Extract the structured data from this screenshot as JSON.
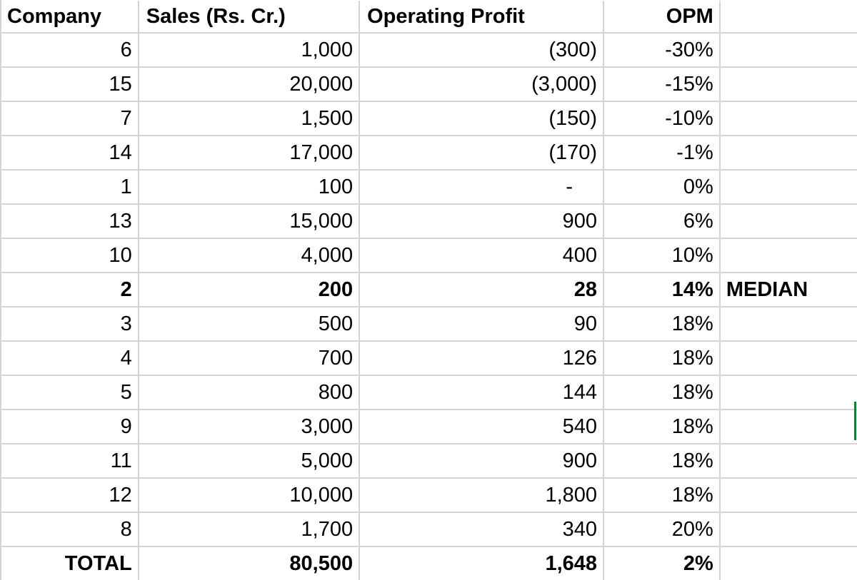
{
  "header": {
    "company": "Company",
    "sales": "Sales (Rs. Cr.)",
    "operating_profit": "Operating Profit",
    "opm": "OPM"
  },
  "rows": [
    {
      "company": "6",
      "sales": "1,000",
      "operating_profit": "(300)",
      "opm": "-30%",
      "note": ""
    },
    {
      "company": "15",
      "sales": "20,000",
      "operating_profit": "(3,000)",
      "opm": "-15%",
      "note": ""
    },
    {
      "company": "7",
      "sales": "1,500",
      "operating_profit": "(150)",
      "opm": "-10%",
      "note": ""
    },
    {
      "company": "14",
      "sales": "17,000",
      "operating_profit": "(170)",
      "opm": "-1%",
      "note": ""
    },
    {
      "company": "1",
      "sales": "100",
      "operating_profit": "-",
      "opm": "0%",
      "note": ""
    },
    {
      "company": "13",
      "sales": "15,000",
      "operating_profit": "900",
      "opm": "6%",
      "note": ""
    },
    {
      "company": "10",
      "sales": "4,000",
      "operating_profit": "400",
      "opm": "10%",
      "note": ""
    },
    {
      "company": "2",
      "sales": "200",
      "operating_profit": "28",
      "opm": "14%",
      "note": "MEDIAN"
    },
    {
      "company": "3",
      "sales": "500",
      "operating_profit": "90",
      "opm": "18%",
      "note": ""
    },
    {
      "company": "4",
      "sales": "700",
      "operating_profit": "126",
      "opm": "18%",
      "note": ""
    },
    {
      "company": "5",
      "sales": "800",
      "operating_profit": "144",
      "opm": "18%",
      "note": ""
    },
    {
      "company": "9",
      "sales": "3,000",
      "operating_profit": "540",
      "opm": "18%",
      "note": ""
    },
    {
      "company": "11",
      "sales": "5,000",
      "operating_profit": "900",
      "opm": "18%",
      "note": ""
    },
    {
      "company": "12",
      "sales": "10,000",
      "operating_profit": "1,800",
      "opm": "18%",
      "note": ""
    },
    {
      "company": "8",
      "sales": "1,700",
      "operating_profit": "340",
      "opm": "20%",
      "note": ""
    }
  ],
  "total": {
    "company": "TOTAL",
    "sales": "80,500",
    "operating_profit": "1,648",
    "opm": "2%"
  }
}
